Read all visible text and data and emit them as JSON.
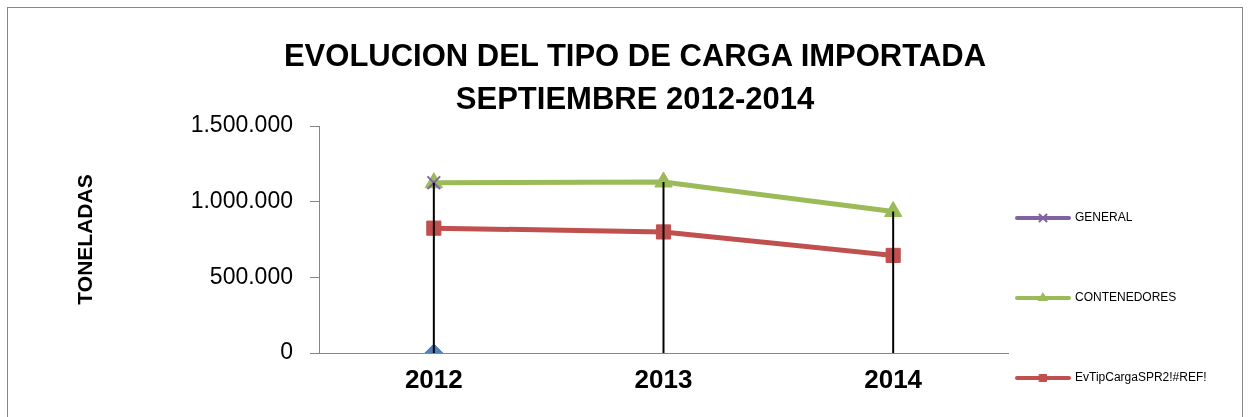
{
  "chart_data": {
    "type": "line",
    "title": "EVOLUCION DEL TIPO DE CARGA IMPORTADA\nSEPTIEMBRE 2012-2014",
    "ylabel": "TONELADAS",
    "x": [
      2012,
      2013,
      2014
    ],
    "series": [
      {
        "type": "line",
        "x": [
          2012,
          2012
        ],
        "values": [
          0,
          1125000
        ],
        "color": "#000000",
        "marker": "none"
      },
      {
        "type": "line",
        "x": [
          2013,
          2013
        ],
        "values": [
          0,
          1130000
        ],
        "color": "#000000",
        "marker": "none"
      },
      {
        "type": "line",
        "x": [
          2014,
          2014
        ],
        "values": [
          0,
          935000
        ],
        "color": "#000000",
        "marker": "none"
      },
      {
        "name": "GENERAL",
        "color": "#8064a2",
        "marker": "cross",
        "values": [
          1125000,
          null,
          null
        ]
      },
      {
        "name": "CONTENEDORES",
        "color": "#9bbb59",
        "marker": "triangle",
        "values": [
          1125000,
          1130000,
          935000
        ]
      },
      {
        "name": "EvTipCargaSPR2!#REF!",
        "color": "#c0504d",
        "marker": "square",
        "values": [
          825000,
          800000,
          645000
        ]
      },
      {
        "color": "#4f81bd",
        "marker": "diamond",
        "values": [
          0,
          null,
          null
        ]
      }
    ],
    "xlim": [
      2011.5,
      2014.5
    ],
    "xticks": [
      2012,
      2013,
      2014
    ],
    "ylim": [
      0,
      1500000
    ],
    "yticks": [
      0,
      {
        "value": 500000,
        "label": "500.000"
      },
      {
        "value": 1000000,
        "label": "1.000.000"
      },
      {
        "value": 1500000,
        "label": "1.500.000"
      }
    ],
    "legend": "right"
  }
}
